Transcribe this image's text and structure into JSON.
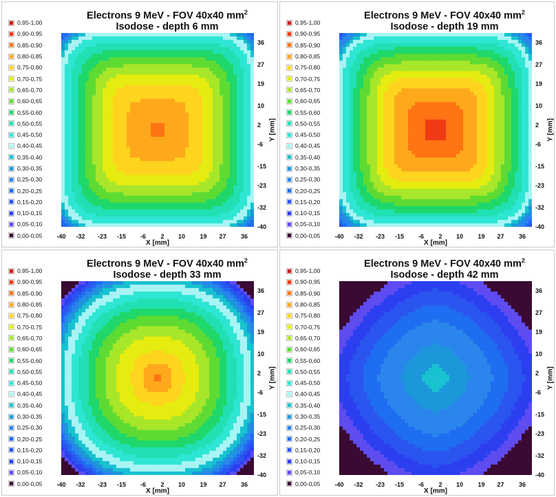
{
  "legend_colors": {
    "0.95-1.00": "#cc1f1a",
    "0.90-0.95": "#f03a16",
    "0.85-0.90": "#ff7413",
    "0.80-0.85": "#ffa81c",
    "0.75-0.80": "#ffd41e",
    "0.70-0.75": "#e5ec10",
    "0.65-0.70": "#a8e62a",
    "0.60-0.65": "#5edb33",
    "0.55-0.60": "#1fd76a",
    "0.50-0.55": "#21e0b3",
    "0.45-0.50": "#2ee6d3",
    "0.40-0.45": "#a8f4f4",
    "0.35-0.40": "#18c2d0",
    "0.30-0.35": "#1c98da",
    "0.25-0.30": "#2a85ec",
    "0.20-0.25": "#1f6df0",
    "0.15-0.20": "#2b55ef",
    "0.10-0.15": "#2b3ff0",
    "0.05-0.10": "#5e4cf0",
    "0.00-0.05": "#3a0a32"
  },
  "chart_data": [
    {
      "type": "heatmap",
      "title_line1": "Electrons 9 MeV - FOV 40x40 mm",
      "title_sup": "2",
      "title_line2": "Isodose - depth 6 mm",
      "xlabel": "X [mm]",
      "ylabel": "Y [mm]",
      "x_ticks": [
        "-40",
        "-32",
        "-23",
        "-15",
        "-6",
        "2",
        "10",
        "19",
        "27",
        "36"
      ],
      "y_ticks": [
        "36",
        "27",
        "19",
        "10",
        "2",
        "-6",
        "-15",
        "-23",
        "-32",
        "-40"
      ],
      "xlim": [
        -40,
        40
      ],
      "ylim": [
        -40,
        40
      ],
      "legend": [
        "0,95-1,00",
        "0,90-0,95",
        "0,85-0,90",
        "0,80-0,85",
        "0,75-0,80",
        "0,70-0,75",
        "0,65-0,70",
        "0,60-0,65",
        "0,55-0,60",
        "0,50-0,55",
        "0,45-0,50",
        "0,40-0,45",
        "0,35-0,40",
        "0,30-0,35",
        "0,25-0,30",
        "0,20-0,25",
        "0,15-0,20",
        "0,10-0,15",
        "0,05-0,10",
        "0,00-0,05"
      ],
      "field_model": {
        "peak": 0.87,
        "inner_plateau": 0.79,
        "edge_level": 0.43,
        "corner_min": 0.0,
        "roundness": 5.5
      }
    },
    {
      "type": "heatmap",
      "title_line1": "Electrons 9 MeV - FOV 40x40 mm",
      "title_sup": "2",
      "title_line2": "Isodose - depth 19 mm",
      "xlabel": "X [mm]",
      "ylabel": "Y [mm]",
      "x_ticks": [
        "-40",
        "-32",
        "-23",
        "-15",
        "-6",
        "2",
        "10",
        "19",
        "27",
        "36"
      ],
      "y_ticks": [
        "36",
        "27",
        "19",
        "10",
        "2",
        "-6",
        "-15",
        "-23",
        "-32",
        "-40"
      ],
      "xlim": [
        -40,
        40
      ],
      "ylim": [
        -40,
        40
      ],
      "legend": [
        "0,95-1,00",
        "0,90-0,95",
        "0,85-0,90",
        "0,80-0,85",
        "0,75-0,80",
        "0,70-0,75",
        "0,65-0,70",
        "0,60-0,65",
        "0,55-0,60",
        "0,50-0,55",
        "0,45-0,50",
        "0,40-0,45",
        "0,35-0,40",
        "0,30-0,35",
        "0,25-0,30",
        "0,20-0,25",
        "0,15-0,20",
        "0,10-0,15",
        "0,05-0,10",
        "0,00-0,05"
      ],
      "field_model": {
        "peak": 0.93,
        "inner_plateau": 0.83,
        "edge_level": 0.43,
        "corner_min": 0.0,
        "roundness": 5.0
      }
    },
    {
      "type": "heatmap",
      "title_line1": "Electrons 9 MeV - FOV 40x40 mm",
      "title_sup": "2",
      "title_line2": "Isodose - depth 33 mm",
      "xlabel": "X [mm]",
      "ylabel": "Y [mm]",
      "x_ticks": [
        "-40",
        "-32",
        "-23",
        "-15",
        "-6",
        "2",
        "10",
        "19",
        "27",
        "36"
      ],
      "y_ticks": [
        "36",
        "27",
        "19",
        "10",
        "2",
        "-6",
        "-15",
        "-23",
        "-32",
        "-40"
      ],
      "xlim": [
        -40,
        40
      ],
      "ylim": [
        -40,
        40
      ],
      "legend": [
        "0,95-1,00",
        "0,90-0,95",
        "0,85-0,90",
        "0,80-0,85",
        "0,75-0,80",
        "0,70-0,75",
        "0,65-0,70",
        "0,60-0,65",
        "0,55-0,60",
        "0,50-0,55",
        "0,45-0,50",
        "0,40-0,45",
        "0,35-0,40",
        "0,30-0,35",
        "0,25-0,30",
        "0,20-0,25",
        "0,15-0,20",
        "0,10-0,15",
        "0,05-0,10",
        "0,00-0,05"
      ],
      "field_model": {
        "peak": 0.86,
        "inner_plateau": 0.72,
        "edge_level": 0.38,
        "corner_min": 0.03,
        "roundness": 2.4
      }
    },
    {
      "type": "heatmap",
      "title_line1": "Electrons 9 MeV - FOV 40x40 mm",
      "title_sup": "2",
      "title_line2": "Isodose - depth 42 mm",
      "xlabel": "X [mm]",
      "ylabel": "Y [mm]",
      "x_ticks": [
        "-40",
        "-32",
        "-23",
        "-15",
        "-6",
        "2",
        "10",
        "19",
        "27",
        "36"
      ],
      "y_ticks": [
        "36",
        "27",
        "19",
        "10",
        "2",
        "-6",
        "-15",
        "-23",
        "-32",
        "-40"
      ],
      "xlim": [
        -40,
        40
      ],
      "ylim": [
        -40,
        40
      ],
      "legend": [
        "0,95-1,00",
        "0,90-0,95",
        "0,85-0,90",
        "0,80-0,85",
        "0,75-0,80",
        "0,70-0,75",
        "0,65-0,70",
        "0,60-0,65",
        "0,55-0,60",
        "0,50-0,55",
        "0,45-0,50",
        "0,40-0,45",
        "0,35-0,40",
        "0,30-0,35",
        "0,25-0,30",
        "0,20-0,25",
        "0,15-0,20",
        "0,10-0,15",
        "0,05-0,10",
        "0,00-0,05"
      ],
      "field_model": {
        "peak": 0.38,
        "inner_plateau": 0.3,
        "edge_level": 0.12,
        "corner_min": 0.03,
        "roundness": 1.6
      }
    }
  ]
}
